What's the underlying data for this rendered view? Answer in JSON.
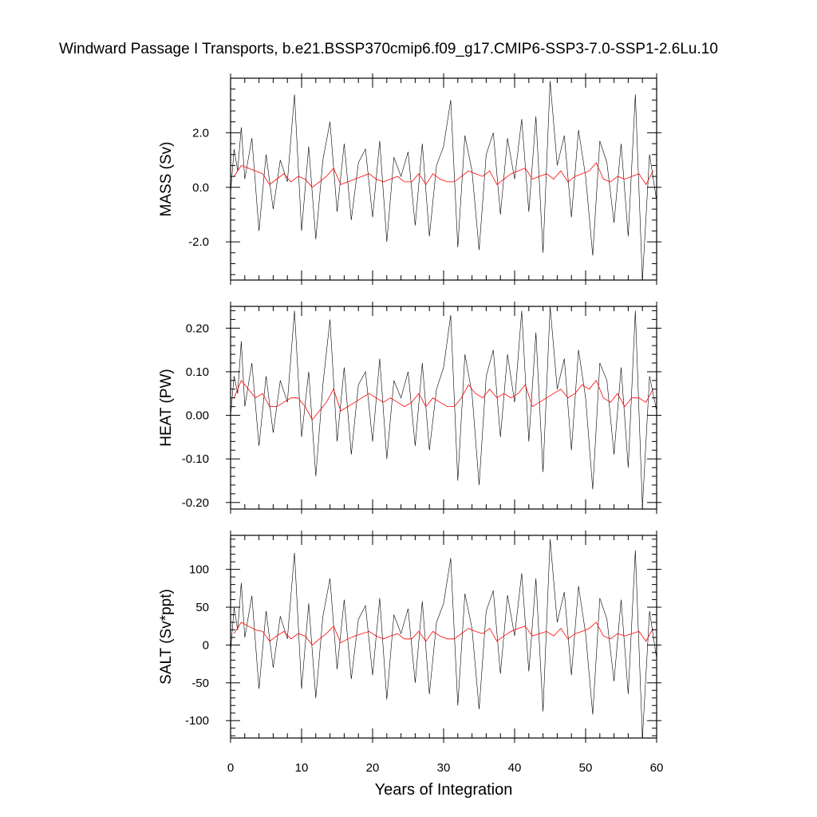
{
  "title": "Windward Passage I Transports, b.e21.BSSP370cmip6.f09_g17.CMIP6-SSP3-7.0-SSP1-2.6Lu.10",
  "colors": {
    "raw_series": "#000000",
    "smoothed_series": "#ff0000"
  },
  "chart_data": [
    {
      "type": "line",
      "ylabel": "MASS (Sv)",
      "xlabel": "",
      "xlim": [
        0,
        60
      ],
      "ylim": [
        -3.4,
        4.0
      ],
      "xticks": [
        0,
        10,
        20,
        30,
        40,
        50,
        60
      ],
      "yticks": [
        -2.0,
        0.0,
        2.0
      ],
      "ytick_labels": [
        "-2.0",
        "0.0",
        "2.0"
      ],
      "xticklabels_shown": false,
      "series": [
        {
          "kind": "raw-monthly",
          "color": "#000000",
          "x": [
            0,
            0.5,
            1,
            1.5,
            2,
            3,
            4,
            5,
            6,
            7,
            8,
            9,
            10,
            11,
            12,
            13,
            14,
            15,
            16,
            17,
            18,
            19,
            20,
            21,
            22,
            23,
            24,
            25,
            26,
            27,
            28,
            29,
            30,
            31,
            32,
            33,
            34,
            35,
            36,
            37,
            38,
            39,
            40,
            41,
            42,
            43,
            44,
            45,
            46,
            47,
            48,
            49,
            50,
            51,
            52,
            53,
            54,
            55,
            56,
            57,
            58,
            59,
            60
          ],
          "y": [
            -0.2,
            1.4,
            0.6,
            2.2,
            0.3,
            1.8,
            -1.6,
            1.2,
            -0.8,
            1.0,
            0.2,
            3.4,
            -1.6,
            1.5,
            -1.9,
            1.0,
            2.4,
            -0.9,
            1.6,
            -1.2,
            0.9,
            1.4,
            -1.1,
            1.7,
            -2.0,
            1.1,
            0.4,
            1.3,
            -1.4,
            1.6,
            -1.8,
            0.8,
            1.5,
            3.2,
            -2.2,
            1.9,
            0.6,
            -2.3,
            1.2,
            2.0,
            -1.0,
            1.8,
            0.3,
            2.5,
            -0.9,
            2.6,
            -2.4,
            3.9,
            0.8,
            1.9,
            -1.1,
            2.1,
            0.4,
            -2.5,
            1.7,
            0.9,
            -1.3,
            1.6,
            -1.8,
            3.4,
            -3.4,
            1.2,
            -0.5
          ]
        },
        {
          "kind": "annual-mean",
          "color": "#ff0000",
          "x": [
            0.5,
            1.5,
            2.5,
            3.5,
            4.5,
            5.5,
            6.5,
            7.5,
            8.5,
            9.5,
            10.5,
            11.5,
            12.5,
            13.5,
            14.5,
            15.5,
            16.5,
            17.5,
            18.5,
            19.5,
            20.5,
            21.5,
            22.5,
            23.5,
            24.5,
            25.5,
            26.5,
            27.5,
            28.5,
            29.5,
            30.5,
            31.5,
            32.5,
            33.5,
            34.5,
            35.5,
            36.5,
            37.5,
            38.5,
            39.5,
            40.5,
            41.5,
            42.5,
            43.5,
            44.5,
            45.5,
            46.5,
            47.5,
            48.5,
            49.5,
            50.5,
            51.5,
            52.5,
            53.5,
            54.5,
            55.5,
            56.5,
            57.5,
            58.5,
            59.5
          ],
          "y": [
            0.4,
            0.8,
            0.7,
            0.6,
            0.5,
            0.1,
            0.3,
            0.5,
            0.2,
            0.4,
            0.3,
            0.0,
            0.2,
            0.4,
            0.7,
            0.1,
            0.2,
            0.3,
            0.4,
            0.5,
            0.3,
            0.2,
            0.3,
            0.4,
            0.2,
            0.2,
            0.5,
            0.1,
            0.5,
            0.3,
            0.2,
            0.2,
            0.4,
            0.6,
            0.5,
            0.4,
            0.6,
            0.1,
            0.3,
            0.5,
            0.6,
            0.7,
            0.3,
            0.4,
            0.5,
            0.3,
            0.6,
            0.2,
            0.4,
            0.5,
            0.6,
            0.9,
            0.3,
            0.2,
            0.4,
            0.3,
            0.4,
            0.5,
            0.1,
            0.6
          ]
        }
      ]
    },
    {
      "type": "line",
      "ylabel": "HEAT (PW)",
      "xlabel": "",
      "xlim": [
        0,
        60
      ],
      "ylim": [
        -0.215,
        0.25
      ],
      "xticks": [
        0,
        10,
        20,
        30,
        40,
        50,
        60
      ],
      "yticks": [
        -0.2,
        -0.1,
        0.0,
        0.1,
        0.2
      ],
      "ytick_labels": [
        "-0.20",
        "-0.10",
        "0.00",
        "0.10",
        "0.20"
      ],
      "xticklabels_shown": false,
      "series": [
        {
          "kind": "raw-monthly",
          "color": "#000000",
          "x": [
            0,
            0.5,
            1,
            1.5,
            2,
            3,
            4,
            5,
            6,
            7,
            8,
            9,
            10,
            11,
            12,
            13,
            14,
            15,
            16,
            17,
            18,
            19,
            20,
            21,
            22,
            23,
            24,
            25,
            26,
            27,
            28,
            29,
            30,
            31,
            32,
            33,
            34,
            35,
            36,
            37,
            38,
            39,
            40,
            41,
            42,
            43,
            44,
            45,
            46,
            47,
            48,
            49,
            50,
            51,
            52,
            53,
            54,
            55,
            56,
            57,
            58,
            59,
            60
          ],
          "y": [
            0.0,
            0.09,
            0.05,
            0.17,
            0.02,
            0.12,
            -0.07,
            0.09,
            -0.04,
            0.08,
            0.03,
            0.24,
            -0.05,
            0.1,
            -0.14,
            0.07,
            0.22,
            -0.06,
            0.11,
            -0.09,
            0.07,
            0.1,
            -0.06,
            0.13,
            -0.1,
            0.08,
            0.04,
            0.1,
            -0.07,
            0.12,
            -0.08,
            0.06,
            0.11,
            0.23,
            -0.15,
            0.14,
            0.05,
            -0.16,
            0.09,
            0.15,
            -0.05,
            0.14,
            0.03,
            0.24,
            -0.06,
            0.19,
            -0.13,
            0.25,
            0.06,
            0.13,
            -0.08,
            0.15,
            0.04,
            -0.17,
            0.12,
            0.08,
            -0.09,
            0.11,
            -0.12,
            0.24,
            -0.21,
            0.09,
            0.01
          ]
        },
        {
          "kind": "annual-mean",
          "color": "#ff0000",
          "x": [
            0.5,
            1.5,
            2.5,
            3.5,
            4.5,
            5.5,
            6.5,
            7.5,
            8.5,
            9.5,
            10.5,
            11.5,
            12.5,
            13.5,
            14.5,
            15.5,
            16.5,
            17.5,
            18.5,
            19.5,
            20.5,
            21.5,
            22.5,
            23.5,
            24.5,
            25.5,
            26.5,
            27.5,
            28.5,
            29.5,
            30.5,
            31.5,
            32.5,
            33.5,
            34.5,
            35.5,
            36.5,
            37.5,
            38.5,
            39.5,
            40.5,
            41.5,
            42.5,
            43.5,
            44.5,
            45.5,
            46.5,
            47.5,
            48.5,
            49.5,
            50.5,
            51.5,
            52.5,
            53.5,
            54.5,
            55.5,
            56.5,
            57.5,
            58.5,
            59.5
          ],
          "y": [
            0.04,
            0.08,
            0.06,
            0.04,
            0.05,
            0.02,
            0.02,
            0.03,
            0.04,
            0.04,
            0.02,
            -0.01,
            0.01,
            0.03,
            0.06,
            0.01,
            0.02,
            0.03,
            0.04,
            0.05,
            0.04,
            0.03,
            0.04,
            0.03,
            0.02,
            0.03,
            0.05,
            0.02,
            0.04,
            0.03,
            0.02,
            0.02,
            0.04,
            0.07,
            0.05,
            0.04,
            0.06,
            0.04,
            0.05,
            0.04,
            0.05,
            0.07,
            0.02,
            0.03,
            0.04,
            0.05,
            0.06,
            0.04,
            0.05,
            0.07,
            0.06,
            0.08,
            0.04,
            0.03,
            0.05,
            0.02,
            0.04,
            0.04,
            0.03,
            0.06
          ]
        }
      ]
    },
    {
      "type": "line",
      "ylabel": "SALT (Sv*ppt)",
      "xlabel": "Years of Integration",
      "xlim": [
        0,
        60
      ],
      "ylim": [
        -123,
        145
      ],
      "xticks": [
        0,
        10,
        20,
        30,
        40,
        50,
        60
      ],
      "xtick_labels": [
        "0",
        "10",
        "20",
        "30",
        "40",
        "50",
        "60"
      ],
      "yticks": [
        -100,
        -50,
        0,
        50,
        100
      ],
      "ytick_labels": [
        "-100",
        "-50",
        "0",
        "50",
        "100"
      ],
      "xticklabels_shown": true,
      "series": [
        {
          "kind": "raw-monthly",
          "color": "#000000",
          "x": [
            0,
            0.5,
            1,
            1.5,
            2,
            3,
            4,
            5,
            6,
            7,
            8,
            9,
            10,
            11,
            12,
            13,
            14,
            15,
            16,
            17,
            18,
            19,
            20,
            21,
            22,
            23,
            24,
            25,
            26,
            27,
            28,
            29,
            30,
            31,
            32,
            33,
            34,
            35,
            36,
            37,
            38,
            39,
            40,
            41,
            42,
            43,
            44,
            45,
            46,
            47,
            48,
            49,
            50,
            51,
            52,
            53,
            54,
            55,
            56,
            57,
            58,
            59,
            60
          ],
          "y": [
            -10,
            50,
            20,
            82,
            10,
            65,
            -58,
            45,
            -30,
            38,
            8,
            122,
            -58,
            55,
            -70,
            38,
            88,
            -32,
            60,
            -45,
            34,
            52,
            -40,
            62,
            -72,
            40,
            15,
            48,
            -50,
            58,
            -65,
            30,
            55,
            115,
            -80,
            68,
            22,
            -85,
            45,
            72,
            -38,
            66,
            12,
            95,
            -35,
            88,
            -88,
            140,
            30,
            70,
            -40,
            78,
            15,
            -92,
            62,
            34,
            -48,
            60,
            -65,
            125,
            -123,
            45,
            -18
          ]
        },
        {
          "kind": "annual-mean",
          "color": "#ff0000",
          "x": [
            0.5,
            1.5,
            2.5,
            3.5,
            4.5,
            5.5,
            6.5,
            7.5,
            8.5,
            9.5,
            10.5,
            11.5,
            12.5,
            13.5,
            14.5,
            15.5,
            16.5,
            17.5,
            18.5,
            19.5,
            20.5,
            21.5,
            22.5,
            23.5,
            24.5,
            25.5,
            26.5,
            27.5,
            28.5,
            29.5,
            30.5,
            31.5,
            32.5,
            33.5,
            34.5,
            35.5,
            36.5,
            37.5,
            38.5,
            39.5,
            40.5,
            41.5,
            42.5,
            43.5,
            44.5,
            45.5,
            46.5,
            47.5,
            48.5,
            49.5,
            50.5,
            51.5,
            52.5,
            53.5,
            54.5,
            55.5,
            56.5,
            57.5,
            58.5,
            59.5
          ],
          "y": [
            15,
            30,
            25,
            20,
            18,
            5,
            12,
            18,
            8,
            15,
            12,
            0,
            8,
            15,
            25,
            3,
            8,
            12,
            15,
            18,
            12,
            8,
            12,
            15,
            8,
            8,
            18,
            5,
            18,
            12,
            8,
            8,
            15,
            22,
            18,
            15,
            22,
            5,
            12,
            18,
            22,
            25,
            12,
            15,
            18,
            12,
            22,
            8,
            15,
            18,
            22,
            30,
            12,
            8,
            15,
            12,
            15,
            18,
            5,
            22
          ]
        }
      ]
    }
  ]
}
